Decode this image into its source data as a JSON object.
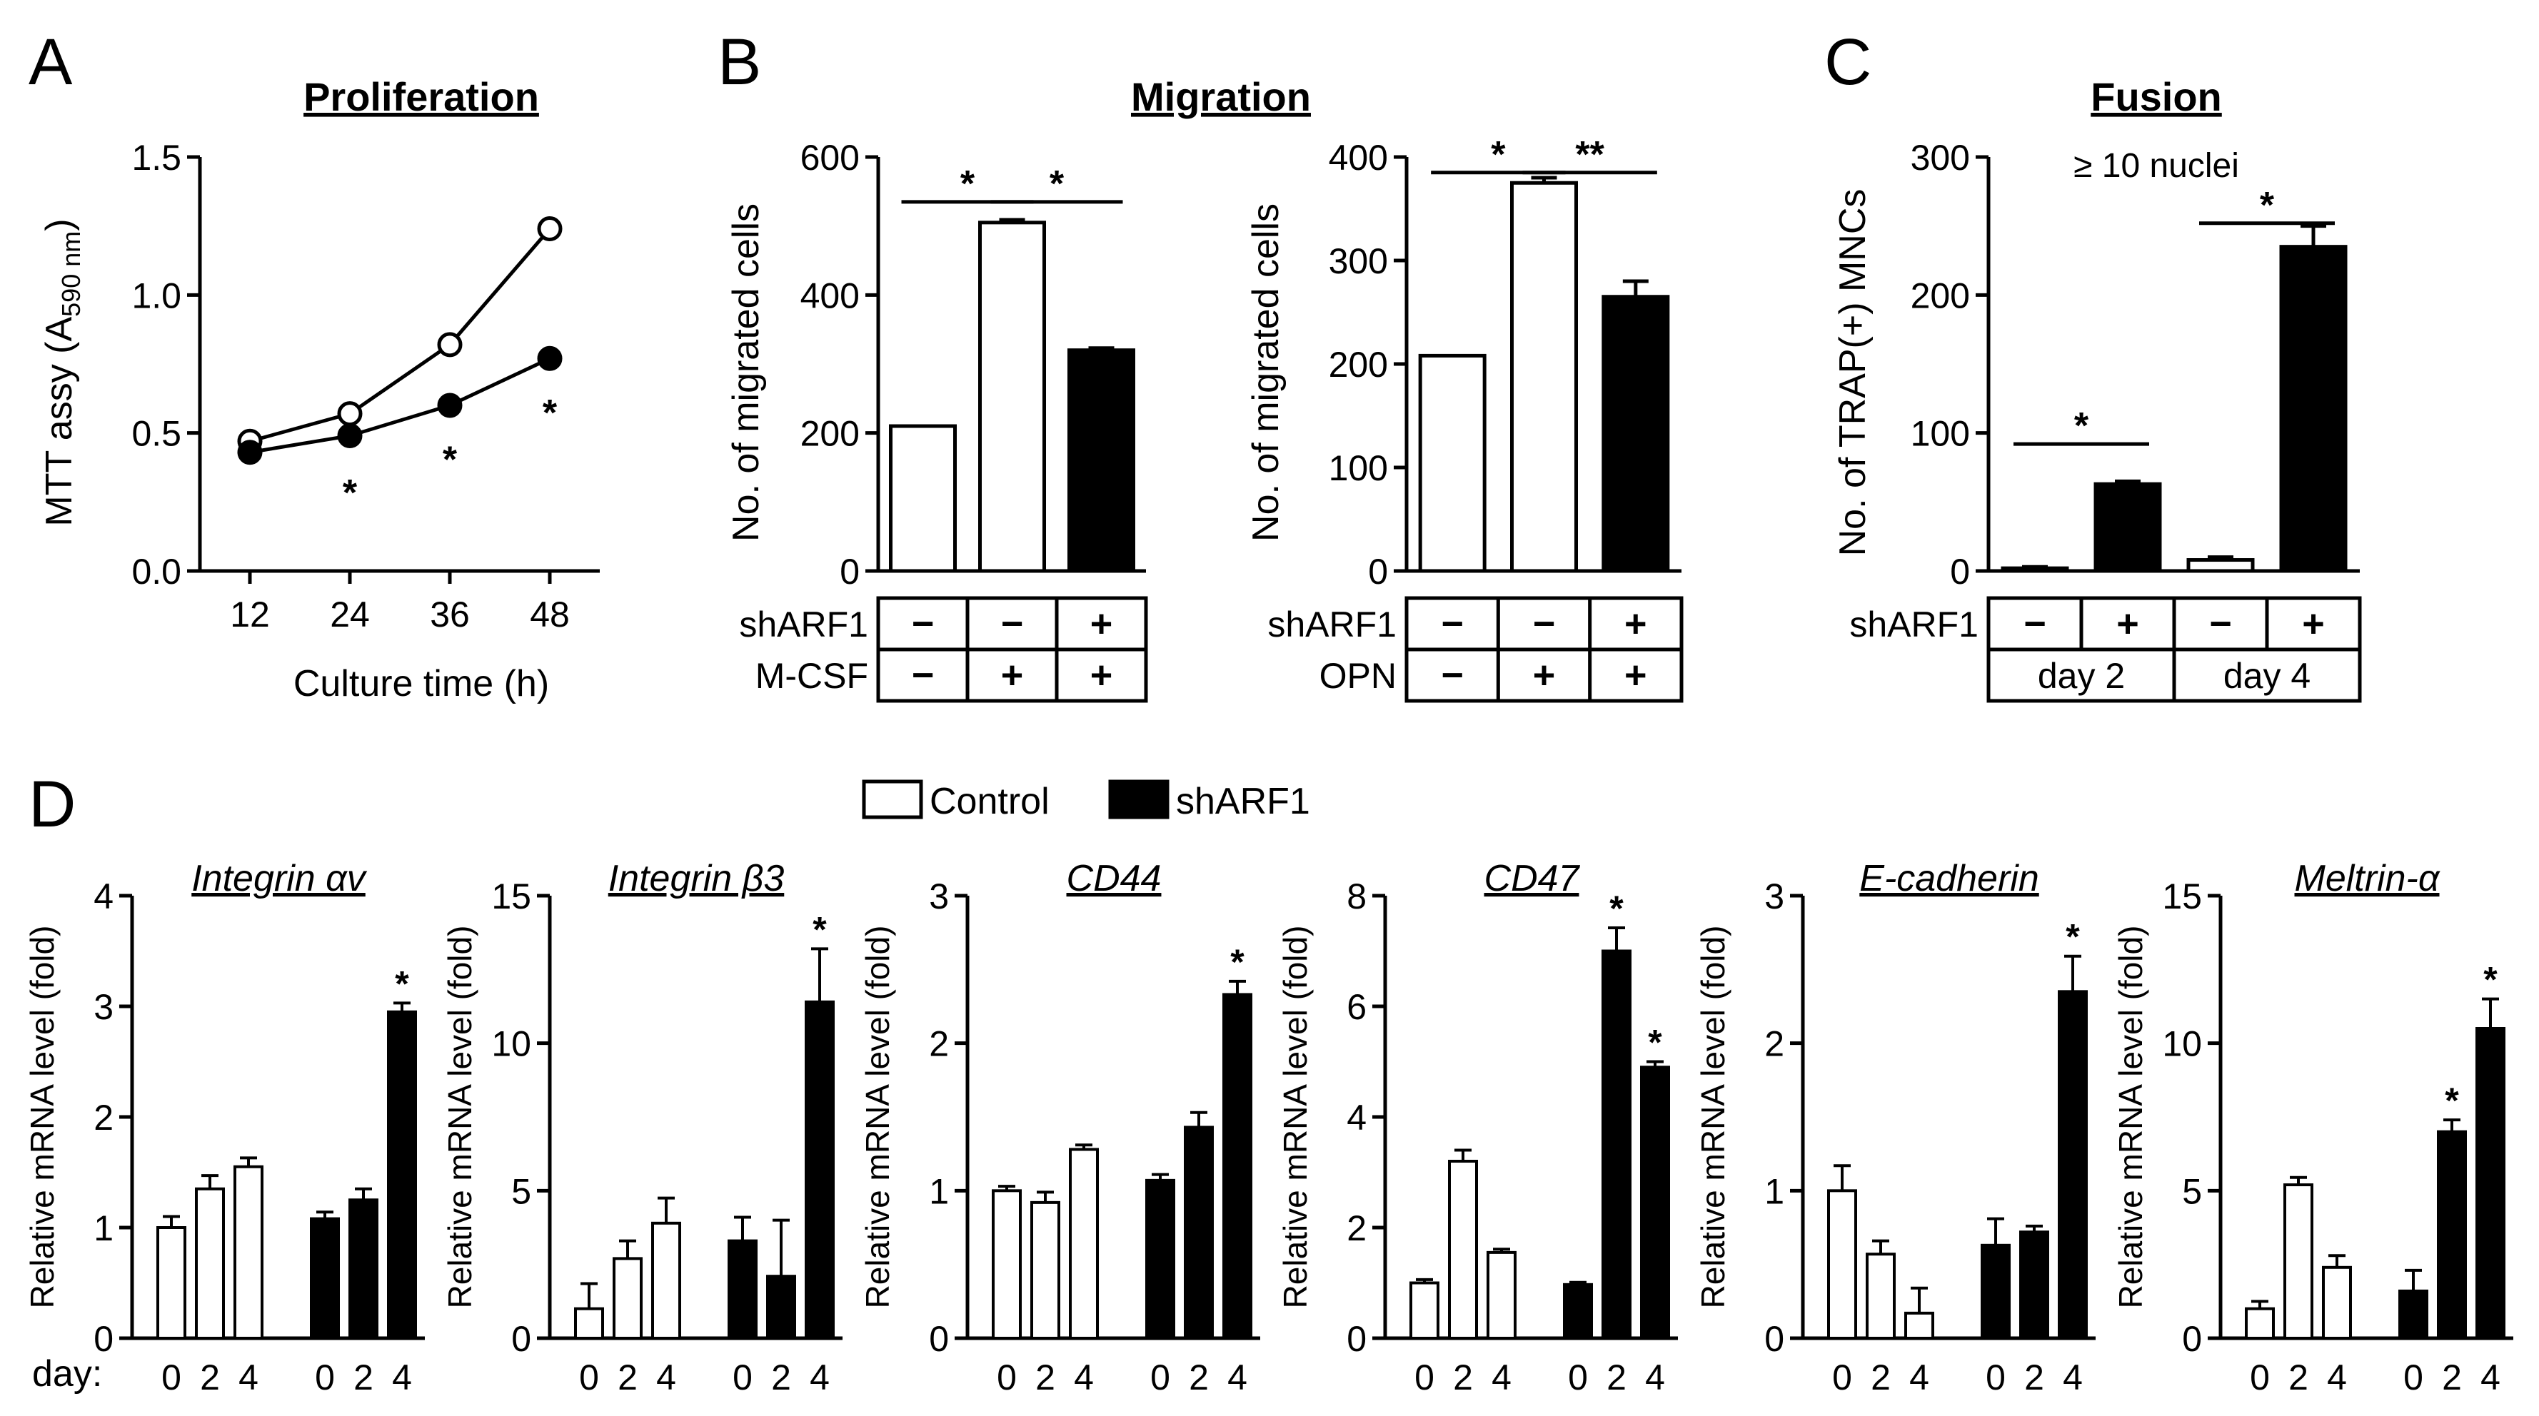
{
  "panel_labels": [
    "A",
    "B",
    "C",
    "D"
  ],
  "chart_data": [
    {
      "id": "A",
      "type": "line",
      "title": "Proliferation",
      "xlabel": "Culture time (h)",
      "ylabel": "MTT assy (A590 nm)",
      "ylabel_main": "MTT assy (A",
      "ylabel_sub": "590 nm",
      "ylabel_close": ")",
      "x": [
        12,
        24,
        36,
        48
      ],
      "xlim": [
        6,
        54
      ],
      "ylim": [
        0,
        1.5
      ],
      "yticks": [
        0.0,
        0.5,
        1.0,
        1.5
      ],
      "ytick_labels": [
        "0.0",
        "0.5",
        "1.0",
        "1.5"
      ],
      "series": [
        {
          "name": "Control",
          "filled": false,
          "values": [
            0.47,
            0.57,
            0.82,
            1.24
          ]
        },
        {
          "name": "shARF1",
          "filled": true,
          "values": [
            0.43,
            0.49,
            0.6,
            0.77
          ]
        }
      ],
      "marks": [
        {
          "text": "*",
          "x": 24,
          "y": 0.3
        },
        {
          "text": "*",
          "x": 36,
          "y": 0.42
        },
        {
          "text": "*",
          "x": 48,
          "y": 0.59
        }
      ]
    },
    {
      "id": "B1",
      "type": "bar",
      "title": "Migration",
      "ylabel": "No. of migrated cells",
      "ylim": [
        0,
        600
      ],
      "yticks": [
        0,
        200,
        400,
        600
      ],
      "ytick_labels": [
        "0",
        "200",
        "400",
        "600"
      ],
      "categories": [
        "1",
        "2",
        "3"
      ],
      "values": [
        210,
        505,
        320
      ],
      "errors": [
        0,
        4,
        3
      ],
      "fills": [
        "white",
        "white",
        "black"
      ],
      "brackets": [
        {
          "from": 0,
          "to": 1,
          "y": 535,
          "text": "*"
        },
        {
          "from": 1,
          "to": 2,
          "y": 535,
          "text": "*"
        }
      ],
      "table": [
        {
          "label": "shARF1",
          "cells": [
            "−",
            "−",
            "+"
          ]
        },
        {
          "label": "M-CSF",
          "cells": [
            "−",
            "+",
            "+"
          ]
        }
      ]
    },
    {
      "id": "B2",
      "type": "bar",
      "ylabel": "No. of migrated cells",
      "ylim": [
        0,
        400
      ],
      "yticks": [
        0,
        100,
        200,
        300,
        400
      ],
      "ytick_labels": [
        "0",
        "100",
        "200",
        "300",
        "400"
      ],
      "categories": [
        "1",
        "2",
        "3"
      ],
      "values": [
        208,
        375,
        265
      ],
      "errors": [
        0,
        5,
        15
      ],
      "fills": [
        "white",
        "white",
        "black"
      ],
      "brackets": [
        {
          "from": 0,
          "to": 1,
          "y": 385,
          "text": "*"
        },
        {
          "from": 1,
          "to": 2,
          "y": 385,
          "text": "**"
        }
      ],
      "table": [
        {
          "label": "shARF1",
          "cells": [
            "−",
            "−",
            "+"
          ]
        },
        {
          "label": "OPN",
          "cells": [
            "−",
            "+",
            "+"
          ]
        }
      ]
    },
    {
      "id": "C",
      "type": "bar",
      "title": "Fusion",
      "subtitle": "≥ 10 nuclei",
      "ylabel": "No. of TRAP(+) MNCs",
      "ylim": [
        0,
        300
      ],
      "yticks": [
        0,
        100,
        200,
        300
      ],
      "ytick_labels": [
        "0",
        "100",
        "200",
        "300"
      ],
      "categories": [
        "1",
        "2",
        "3",
        "4"
      ],
      "values": [
        2,
        63,
        8,
        235
      ],
      "errors": [
        1,
        2,
        2,
        15
      ],
      "fills": [
        "white",
        "black",
        "white",
        "black"
      ],
      "brackets": [
        {
          "from": 0,
          "to": 1,
          "y": 92,
          "text": "*"
        },
        {
          "from": 2,
          "to": 3,
          "y": 252,
          "text": "*"
        }
      ],
      "table": [
        {
          "label": "shARF1",
          "cells": [
            "−",
            "+",
            "−",
            "+"
          ]
        }
      ],
      "group_labels": [
        "day 2",
        "day 4"
      ]
    }
  ],
  "panel_d": {
    "legend": [
      {
        "name": "Control",
        "fill": "white"
      },
      {
        "name": "shARF1",
        "fill": "black"
      }
    ],
    "ylabel": "Relative mRNA level (fold)",
    "day_label": "day:",
    "x_ticks": [
      "0",
      "2",
      "4",
      "0",
      "2",
      "4"
    ],
    "charts": [
      {
        "title": "Integrin αv",
        "ylim": [
          0,
          4
        ],
        "yticks": [
          0,
          1,
          2,
          3,
          4
        ],
        "ytick_labels": [
          "0",
          "1",
          "2",
          "3",
          "4"
        ],
        "control": [
          1.0,
          1.35,
          1.55
        ],
        "control_err": [
          0.1,
          0.12,
          0.08
        ],
        "shARF1": [
          1.08,
          1.25,
          2.95
        ],
        "shARF1_err": [
          0.06,
          0.1,
          0.08
        ],
        "stars": [
          "",
          "",
          "",
          "",
          "",
          "*"
        ]
      },
      {
        "title": "Integrin β3",
        "ylim": [
          0,
          15
        ],
        "yticks": [
          0,
          5,
          10,
          15
        ],
        "ytick_labels": [
          "0",
          "5",
          "10",
          "15"
        ],
        "control": [
          1.0,
          2.7,
          3.9
        ],
        "control_err": [
          0.85,
          0.6,
          0.85
        ],
        "shARF1": [
          3.3,
          2.1,
          11.4
        ],
        "shARF1_err": [
          0.8,
          1.9,
          1.8
        ],
        "stars": [
          "",
          "",
          "",
          "",
          "",
          "*"
        ]
      },
      {
        "title": "CD44",
        "ylim": [
          0,
          3
        ],
        "yticks": [
          0,
          1,
          2,
          3
        ],
        "ytick_labels": [
          "0",
          "1",
          "2",
          "3"
        ],
        "control": [
          1.0,
          0.92,
          1.28
        ],
        "control_err": [
          0.03,
          0.07,
          0.03
        ],
        "shARF1": [
          1.07,
          1.43,
          2.33
        ],
        "shARF1_err": [
          0.04,
          0.1,
          0.09
        ],
        "stars": [
          "",
          "",
          "",
          "",
          "",
          "*"
        ]
      },
      {
        "title": "CD47",
        "ylim": [
          0,
          8
        ],
        "yticks": [
          0,
          2,
          4,
          6,
          8
        ],
        "ytick_labels": [
          "0",
          "2",
          "4",
          "6",
          "8"
        ],
        "control": [
          1.0,
          3.2,
          1.55
        ],
        "control_err": [
          0.06,
          0.2,
          0.06
        ],
        "shARF1": [
          0.97,
          7.0,
          4.9
        ],
        "shARF1_err": [
          0.04,
          0.42,
          0.1
        ],
        "stars": [
          "",
          "",
          "",
          "",
          "*",
          "*"
        ]
      },
      {
        "title": "E-cadherin",
        "ylim": [
          0,
          3
        ],
        "yticks": [
          0,
          1,
          2,
          3
        ],
        "ytick_labels": [
          "0",
          "1",
          "2",
          "3"
        ],
        "control": [
          1.0,
          0.57,
          0.17
        ],
        "control_err": [
          0.17,
          0.09,
          0.17
        ],
        "shARF1": [
          0.63,
          0.72,
          2.35
        ],
        "shARF1_err": [
          0.18,
          0.04,
          0.24
        ],
        "stars": [
          "",
          "",
          "",
          "",
          "",
          "*"
        ]
      },
      {
        "title": "Meltrin-α",
        "ylim": [
          0,
          15
        ],
        "yticks": [
          0,
          5,
          10,
          15
        ],
        "ytick_labels": [
          "0",
          "5",
          "10",
          "15"
        ],
        "control": [
          1.0,
          5.2,
          2.4
        ],
        "control_err": [
          0.25,
          0.25,
          0.4
        ],
        "shARF1": [
          1.6,
          7.0,
          10.5
        ],
        "shARF1_err": [
          0.7,
          0.4,
          1.0
        ],
        "stars": [
          "",
          "",
          "",
          "",
          "*",
          "*"
        ]
      }
    ]
  }
}
